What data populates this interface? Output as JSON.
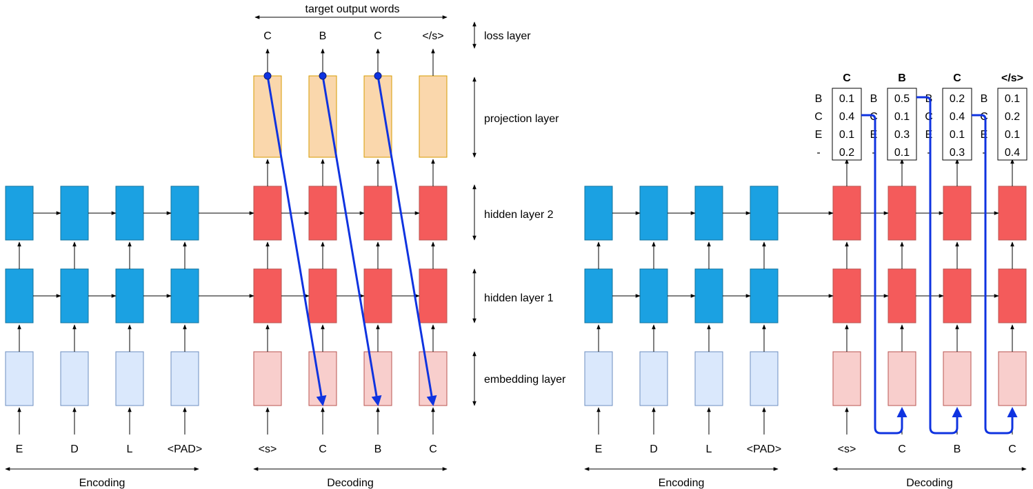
{
  "left": {
    "top_label": "target output words",
    "outputs": [
      "C",
      "B",
      "C",
      "</s>"
    ],
    "encoder_inputs": [
      "E",
      "D",
      "L",
      "<PAD>"
    ],
    "decoder_inputs": [
      "<s>",
      "C",
      "B",
      "C"
    ],
    "encoding_label": "Encoding",
    "decoding_label": "Decoding"
  },
  "layers": {
    "loss": "loss layer",
    "projection": "projection layer",
    "hidden2": "hidden layer 2",
    "hidden1": "hidden layer 1",
    "embedding": "embedding layer"
  },
  "right": {
    "encoder_inputs": [
      "E",
      "D",
      "L",
      "<PAD>"
    ],
    "decoder_inputs": [
      "<s>",
      "C",
      "B",
      "C"
    ],
    "encoding_label": "Encoding",
    "decoding_label": "Decoding",
    "prob_tables": [
      {
        "title": "C",
        "tokens": [
          "B",
          "C",
          "E",
          "-"
        ],
        "values": [
          "0.1",
          "0.4",
          "0.1",
          "0.2"
        ],
        "selected": 1
      },
      {
        "title": "B",
        "tokens": [
          "B",
          "C",
          "E",
          "-"
        ],
        "values": [
          "0.5",
          "0.1",
          "0.3",
          "0.1"
        ],
        "selected": 0
      },
      {
        "title": "C",
        "tokens": [
          "B",
          "C",
          "E",
          "-"
        ],
        "values": [
          "0.2",
          "0.4",
          "0.1",
          "0.3"
        ],
        "selected": 1
      },
      {
        "title": "</s>",
        "tokens": [
          "B",
          "C",
          "E",
          "-"
        ],
        "values": [
          "0.1",
          "0.2",
          "0.1",
          "0.4"
        ],
        "selected": 3
      }
    ]
  },
  "colors": {
    "encoder_cell": "#1ba1e2",
    "encoder_embedding": "#dae8fc",
    "decoder_cell": "#f45b5b",
    "decoder_embedding": "#f8cecc",
    "projection": "#fad7ac",
    "feed_arrow": "#0f33e0",
    "selected_prob": "#1e7d1e"
  }
}
